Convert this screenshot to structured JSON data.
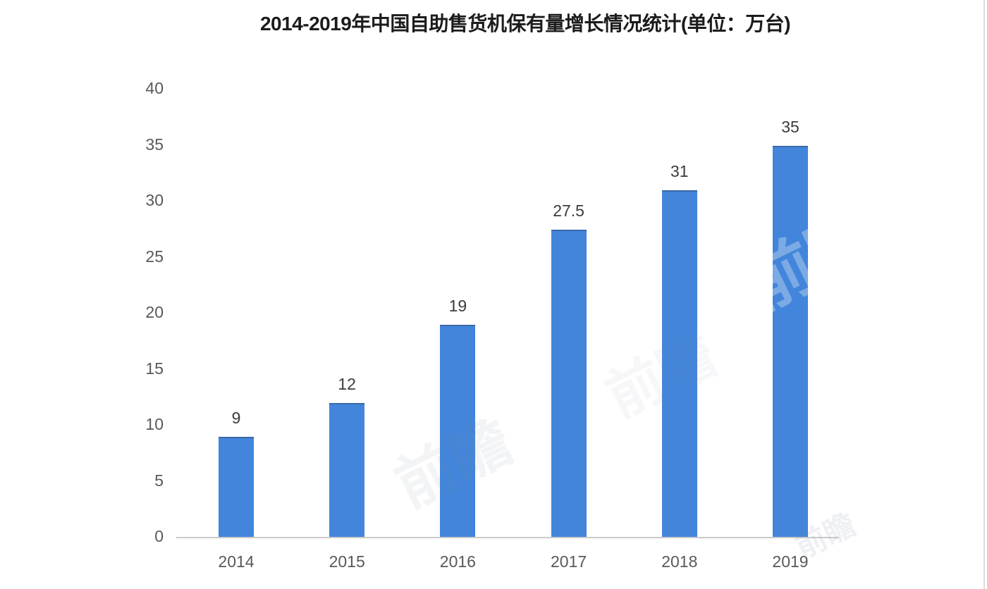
{
  "chart_data": {
    "type": "bar",
    "title": "2014-2019年中国自助售货机保有量增长情况统计(单位：万台)",
    "categories": [
      "2014",
      "2015",
      "2016",
      "2017",
      "2018",
      "2019"
    ],
    "values": [
      9,
      12,
      19,
      27.5,
      31,
      35
    ],
    "value_labels": [
      "9",
      "12",
      "19",
      "27.5",
      "31",
      "35"
    ],
    "xlabel": "",
    "ylabel": "",
    "ylim": [
      0,
      40
    ],
    "yticks": [
      0,
      5,
      10,
      15,
      20,
      25,
      30,
      35,
      40
    ],
    "grid": false,
    "legend": null,
    "bar_color": "#4285db",
    "axis_line_color": "#cbcbcb",
    "tick_label_color": "#595959",
    "value_label_color": "#3b3b3b",
    "title_color": "#1c1c1c"
  },
  "watermark": {
    "text": "前瞻"
  }
}
